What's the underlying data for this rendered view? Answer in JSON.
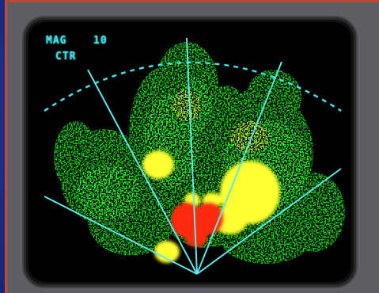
{
  "display": {
    "mode_label": "MAG",
    "range_label": "10",
    "center_label": "CTR"
  },
  "colors": {
    "range_arc": "#3fe0e8",
    "azimuth_lines": "#5fe6ea",
    "light_precip": "#18d418",
    "moderate_precip": "#ffff33",
    "heavy_precip": "#ff2a0a"
  }
}
